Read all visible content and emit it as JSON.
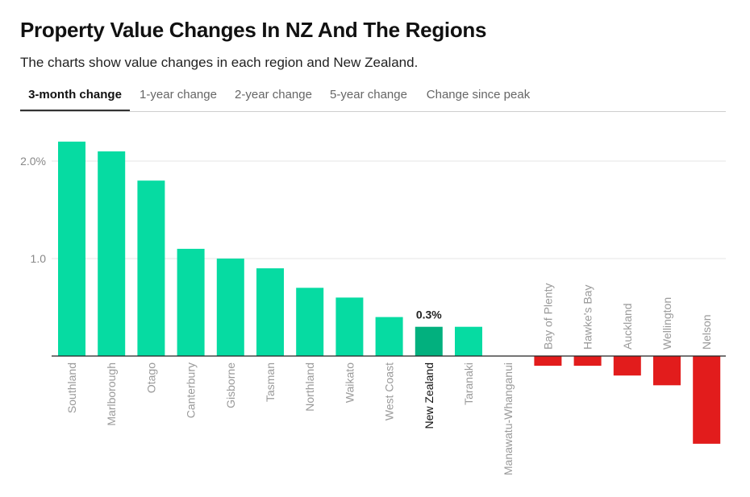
{
  "header": {
    "title": "Property Value Changes In NZ And The Regions",
    "subtitle": "The charts show value changes in each region and New Zealand."
  },
  "tabs": [
    {
      "label": "3-month change",
      "active": true
    },
    {
      "label": "1-year change",
      "active": false
    },
    {
      "label": "2-year change",
      "active": false
    },
    {
      "label": "5-year change",
      "active": false
    },
    {
      "label": "Change since peak",
      "active": false
    }
  ],
  "colors": {
    "positive": "#06dba2",
    "highlight": "#02b07e",
    "negative": "#e21c1c",
    "label": "#9a9a9a",
    "highlight_label": "#111111",
    "grid": "#e6e6e6",
    "axis": "#222222"
  },
  "chart_data": {
    "type": "bar",
    "title": "",
    "xlabel": "",
    "ylabel": "",
    "ylim": [
      -0.9,
      2.2
    ],
    "ytick_values": [
      1.0,
      2.0
    ],
    "ytick_labels": [
      "1.0",
      "2.0%"
    ],
    "highlight_category": "New Zealand",
    "highlight_value_label": "0.3%",
    "grid": true,
    "categories": [
      "Southland",
      "Marlborough",
      "Otago",
      "Canterbury",
      "Gisborne",
      "Tasman",
      "Northland",
      "Waikato",
      "West Coast",
      "New Zealand",
      "Taranaki",
      "Manawatu-Whanganui",
      "Bay of Plenty",
      "Hawke's Bay",
      "Auckland",
      "Wellington",
      "Nelson"
    ],
    "values": [
      2.2,
      2.1,
      1.8,
      1.1,
      1.0,
      0.9,
      0.7,
      0.6,
      0.4,
      0.3,
      0.3,
      0.0,
      -0.1,
      -0.1,
      -0.2,
      -0.3,
      -0.9
    ]
  }
}
